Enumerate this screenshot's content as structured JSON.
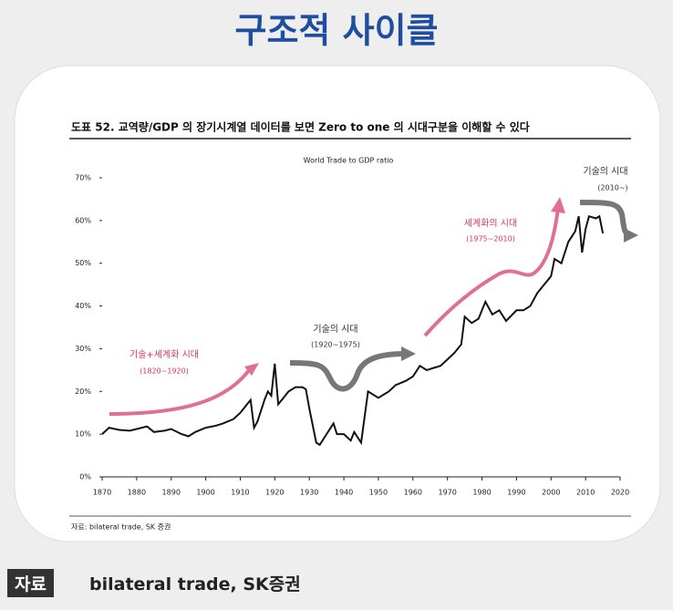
{
  "header": {
    "title": "구조적 사이클"
  },
  "chart_data": {
    "type": "line",
    "caption": "도표 52. 교역량/GDP 의 장기시계열 데이터를 보면 Zero to one 의 시대구분을 이해할 수 있다",
    "title": "World Trade to GDP ratio",
    "source": "자료: bilateral trade, SK 증권",
    "color": "#111111",
    "x": [
      1870,
      1872,
      1875,
      1878,
      1880,
      1883,
      1885,
      1888,
      1890,
      1893,
      1895,
      1897,
      1900,
      1903,
      1905,
      1908,
      1910,
      1911,
      1912,
      1913,
      1914,
      1915,
      1917,
      1918,
      1919,
      1920,
      1921,
      1922,
      1924,
      1926,
      1928,
      1929,
      1930,
      1932,
      1933,
      1935,
      1937,
      1938,
      1940,
      1942,
      1943,
      1945,
      1947,
      1950,
      1953,
      1955,
      1958,
      1960,
      1962,
      1964,
      1966,
      1968,
      1970,
      1972,
      1974,
      1975,
      1977,
      1979,
      1981,
      1983,
      1985,
      1987,
      1990,
      1992,
      1994,
      1996,
      1998,
      2000,
      2001,
      2003,
      2005,
      2007,
      2008,
      2009,
      2010,
      2011,
      2013,
      2014,
      2015
    ],
    "values": [
      10,
      11.5,
      11,
      10.8,
      11.2,
      11.8,
      10.5,
      10.8,
      11.2,
      10,
      9.5,
      10.5,
      11.5,
      12,
      12.5,
      13.5,
      15,
      16,
      17,
      18,
      11.5,
      13,
      18,
      20,
      19,
      26.5,
      17,
      18,
      20,
      21,
      21,
      20.5,
      16,
      8,
      7.5,
      10,
      12.5,
      10,
      10,
      8.5,
      10.5,
      8,
      20,
      18.5,
      20,
      21.5,
      22.5,
      23.5,
      26,
      25,
      25.5,
      26,
      27.5,
      29,
      31,
      37.5,
      36,
      37,
      41,
      38,
      39,
      36.5,
      39,
      39,
      40,
      43,
      45,
      47,
      51,
      50,
      55,
      57.5,
      61,
      52.5,
      58,
      61,
      60.5,
      61,
      57
    ],
    "xlim": [
      1870,
      2020
    ],
    "ylim": [
      0,
      70
    ],
    "xticks": [
      1870,
      1880,
      1890,
      1900,
      1910,
      1920,
      1930,
      1940,
      1950,
      1960,
      1970,
      1980,
      1990,
      2000,
      2010,
      2020
    ],
    "yticks": [
      {
        "value": 0,
        "label": "0%"
      },
      {
        "value": 10,
        "label": "10%"
      },
      {
        "value": 20,
        "label": "20%"
      },
      {
        "value": 30,
        "label": "30%"
      },
      {
        "value": 40,
        "label": "40%"
      },
      {
        "value": 50,
        "label": "50%"
      },
      {
        "value": 60,
        "label": "60%"
      },
      {
        "value": 70,
        "label": "70%"
      }
    ],
    "annotations": [
      {
        "text": "기술+세계화 시대",
        "color": "#d6336c"
      },
      {
        "text": "(1820~1920)",
        "color": "#d6336c"
      },
      {
        "text": "기술의 시대",
        "color": "#333333"
      },
      {
        "text": "(1920~1975)",
        "color": "#333333"
      },
      {
        "text": "세계화의 시대",
        "color": "#d6336c"
      },
      {
        "text": "(1975~2010)",
        "color": "#d6336c"
      },
      {
        "text": "기술의 시대",
        "color": "#333333"
      },
      {
        "text": "(2010~)",
        "color": "#333333"
      }
    ]
  },
  "footer": {
    "label": "자료",
    "text": "bilateral trade, SK증권"
  }
}
